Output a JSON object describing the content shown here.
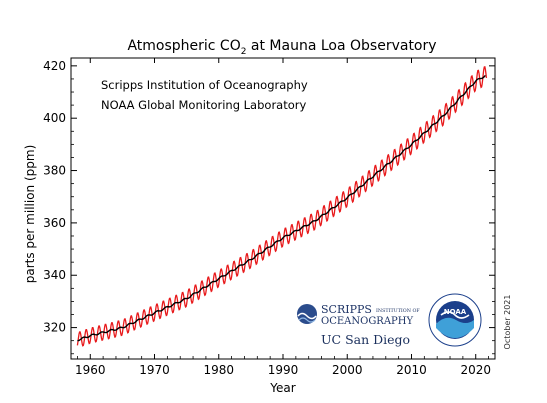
{
  "chart_data": {
    "type": "line",
    "title_main": "Atmospheric CO",
    "title_sub": "2",
    "title_rest": " at Mauna Loa Observatory",
    "xlabel": "Year",
    "ylabel": "parts per million (ppm)",
    "xlim": [
      1957,
      2023
    ],
    "ylim": [
      308,
      423
    ],
    "x_ticks": [
      1960,
      1970,
      1980,
      1990,
      2000,
      2010,
      2020
    ],
    "y_ticks": [
      320,
      340,
      360,
      380,
      400,
      420
    ],
    "annotations": [
      "Scripps Institution of Oceanography",
      "NOAA Global Monitoring Laboratory"
    ],
    "date_label": "October 2021",
    "series": [
      {
        "role": "monthly mean (seasonal cycle)",
        "color": "#e8191b",
        "x": [
          1958,
          1960,
          1965,
          1970,
          1975,
          1980,
          1985,
          1990,
          1995,
          2000,
          2005,
          2010,
          2015,
          2020,
          2021.7
        ],
        "trend_values": [
          315.2,
          316.9,
          320.0,
          325.6,
          331.1,
          338.7,
          346.0,
          354.3,
          360.8,
          369.6,
          379.8,
          389.9,
          401.0,
          414.2,
          416.5
        ]
      },
      {
        "role": "seasonally adjusted trend",
        "color": "#000000",
        "x": [
          1958,
          1960,
          1965,
          1970,
          1975,
          1980,
          1985,
          1990,
          1995,
          2000,
          2005,
          2010,
          2015,
          2020,
          2021.7
        ],
        "values": [
          315.2,
          316.9,
          320.0,
          325.6,
          331.1,
          338.7,
          346.0,
          354.3,
          360.8,
          369.6,
          379.8,
          389.9,
          401.0,
          414.2,
          416.5
        ]
      }
    ],
    "logos": {
      "scripps_top": "SCRIPPS",
      "scripps_small": "INSTITUTION OF",
      "scripps_bottom": "OCEANOGRAPHY",
      "ucsd": "UC San Diego",
      "noaa": "NOAA"
    }
  }
}
